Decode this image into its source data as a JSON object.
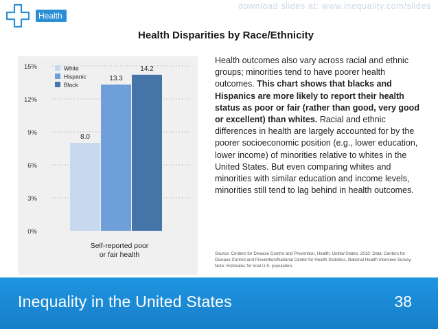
{
  "header": {
    "download_text": "download slides at: www.inequality.com/slides",
    "section_label": "Health"
  },
  "slide": {
    "title": "Health Disparities by Race/Ethnicity",
    "number": "38"
  },
  "footer": {
    "title": "Inequality in the United States"
  },
  "description": {
    "intro": "Health outcomes also vary across racial and ethnic groups; minorities tend to have poorer health outcomes. ",
    "bold": "This chart shows that blacks and Hispanics are more likely to report their health status as poor or fair (rather than good, very good or excellent) than whites.",
    "rest": " Racial and ethnic differences in health are largely accounted for by the poorer socioeconomic position (e.g., lower education, lower income) of minorities relative to whites in the United States. But even comparing whites and minorities with similar education and income levels, minorities still tend to lag behind in health outcomes."
  },
  "source": {
    "prefix": "Source: Centers for Disease Control and Prevention, Health, ",
    "italic": "United States, 2010",
    "suffix": ". Data: Centers for Disease Control and Prevention/National Center for Health Statistics, National Health Interview Survey. Note: Estimates for total U.S. population."
  },
  "chart_data": {
    "type": "bar",
    "title": "",
    "categories": [
      "Self-reported poor or fair health"
    ],
    "category_lines": [
      "Self-reported poor",
      "or fair health"
    ],
    "series": [
      {
        "name": "White",
        "values": [
          8.0
        ],
        "label": "8.0",
        "color": "#c6d9ef"
      },
      {
        "name": "Hispanic",
        "values": [
          13.3
        ],
        "label": "13.3",
        "color": "#6f9fd8"
      },
      {
        "name": "Black",
        "values": [
          14.2
        ],
        "label": "14.2",
        "color": "#4574a8"
      }
    ],
    "yticks": [
      0,
      3,
      6,
      9,
      12,
      15
    ],
    "ytick_labels": [
      "0%",
      "3%",
      "6%",
      "9%",
      "12%",
      "15%"
    ],
    "ylim": [
      0,
      15
    ],
    "ylabel": "",
    "xlabel": "",
    "grid": true,
    "legend": "top-left"
  }
}
